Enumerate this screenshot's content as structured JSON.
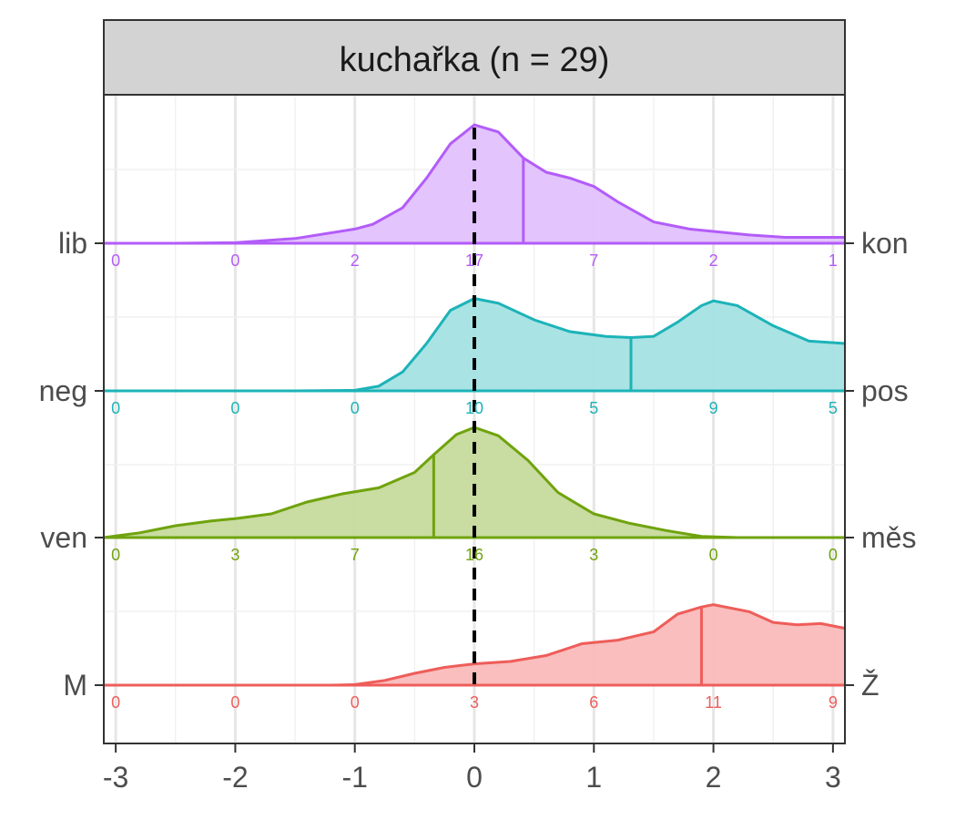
{
  "chart_data": {
    "type": "ridgeline-density",
    "title": "kuchařka (n = 29)",
    "xlim": [
      -3.1,
      3.1
    ],
    "x_ticks": [
      -3,
      -2,
      -1,
      0,
      1,
      2,
      3
    ],
    "x_tick_labels": [
      "-3",
      "-2",
      "-1",
      "0",
      "1",
      "2",
      "3"
    ],
    "count_positions": [
      -3,
      -2,
      -1,
      0,
      1,
      2,
      3
    ],
    "reference_line": 0,
    "grid": true,
    "legend": "none",
    "rows": [
      {
        "left_label": "lib",
        "right_label": "kon",
        "color": "#B35CF9",
        "fill": "#E2C1FD",
        "mean": 0.41,
        "counts": [
          "0",
          "0",
          "2",
          "17",
          "7",
          "2",
          "1"
        ],
        "density": [
          [
            -3.1,
            0
          ],
          [
            -2.5,
            0
          ],
          [
            -2,
            0.005
          ],
          [
            -1.5,
            0.04
          ],
          [
            -1,
            0.12
          ],
          [
            -0.85,
            0.16
          ],
          [
            -0.6,
            0.3
          ],
          [
            -0.4,
            0.55
          ],
          [
            -0.2,
            0.84
          ],
          [
            0,
            1
          ],
          [
            0.2,
            0.94
          ],
          [
            0.41,
            0.72
          ],
          [
            0.6,
            0.6
          ],
          [
            0.8,
            0.55
          ],
          [
            1,
            0.48
          ],
          [
            1.2,
            0.35
          ],
          [
            1.5,
            0.18
          ],
          [
            1.8,
            0.12
          ],
          [
            2,
            0.1
          ],
          [
            2.3,
            0.07
          ],
          [
            2.6,
            0.05
          ],
          [
            3.1,
            0.05
          ]
        ]
      },
      {
        "left_label": "neg",
        "right_label": "pos",
        "color": "#1CB3B8",
        "fill": "#A5E1E3",
        "mean": 1.31,
        "counts": [
          "0",
          "0",
          "0",
          "10",
          "5",
          "9",
          "5"
        ],
        "density": [
          [
            -3.1,
            0
          ],
          [
            -2,
            0
          ],
          [
            -1.5,
            0
          ],
          [
            -1,
            0.005
          ],
          [
            -0.8,
            0.04
          ],
          [
            -0.6,
            0.16
          ],
          [
            -0.4,
            0.4
          ],
          [
            -0.2,
            0.68
          ],
          [
            0,
            0.78
          ],
          [
            0.2,
            0.74
          ],
          [
            0.5,
            0.6
          ],
          [
            0.8,
            0.5
          ],
          [
            1.1,
            0.46
          ],
          [
            1.31,
            0.45
          ],
          [
            1.5,
            0.46
          ],
          [
            1.7,
            0.58
          ],
          [
            1.9,
            0.72
          ],
          [
            2,
            0.76
          ],
          [
            2.2,
            0.72
          ],
          [
            2.5,
            0.55
          ],
          [
            2.8,
            0.42
          ],
          [
            3.1,
            0.4
          ]
        ]
      },
      {
        "left_label": "ven",
        "right_label": "měs",
        "color": "#6FA30D",
        "fill": "#C6DA9C",
        "mean": -0.34,
        "counts": [
          "0",
          "3",
          "7",
          "16",
          "3",
          "0",
          "0"
        ],
        "density": [
          [
            -3.1,
            0
          ],
          [
            -2.8,
            0.04
          ],
          [
            -2.5,
            0.1
          ],
          [
            -2.2,
            0.14
          ],
          [
            -2,
            0.16
          ],
          [
            -1.7,
            0.2
          ],
          [
            -1.4,
            0.3
          ],
          [
            -1.1,
            0.37
          ],
          [
            -0.8,
            0.42
          ],
          [
            -0.5,
            0.55
          ],
          [
            -0.34,
            0.7
          ],
          [
            -0.15,
            0.87
          ],
          [
            0,
            0.93
          ],
          [
            0.2,
            0.86
          ],
          [
            0.45,
            0.65
          ],
          [
            0.7,
            0.38
          ],
          [
            1,
            0.2
          ],
          [
            1.3,
            0.12
          ],
          [
            1.6,
            0.06
          ],
          [
            1.9,
            0.01
          ],
          [
            2.2,
            0
          ],
          [
            3.1,
            0
          ]
        ]
      },
      {
        "left_label": "M",
        "right_label": "Ž",
        "color": "#EE5D5A",
        "fill": "#F9BAB9",
        "mean": 1.9,
        "counts": [
          "0",
          "0",
          "0",
          "3",
          "6",
          "11",
          "9"
        ],
        "density": [
          [
            -3.1,
            0
          ],
          [
            -2,
            0
          ],
          [
            -1.2,
            0
          ],
          [
            -1,
            0.005
          ],
          [
            -0.75,
            0.04
          ],
          [
            -0.5,
            0.1
          ],
          [
            -0.25,
            0.15
          ],
          [
            0,
            0.18
          ],
          [
            0.3,
            0.2
          ],
          [
            0.6,
            0.25
          ],
          [
            0.9,
            0.35
          ],
          [
            1.2,
            0.38
          ],
          [
            1.5,
            0.45
          ],
          [
            1.7,
            0.6
          ],
          [
            1.9,
            0.66
          ],
          [
            2,
            0.68
          ],
          [
            2.3,
            0.62
          ],
          [
            2.5,
            0.53
          ],
          [
            2.7,
            0.51
          ],
          [
            2.9,
            0.52
          ],
          [
            3.1,
            0.48
          ]
        ]
      }
    ]
  }
}
